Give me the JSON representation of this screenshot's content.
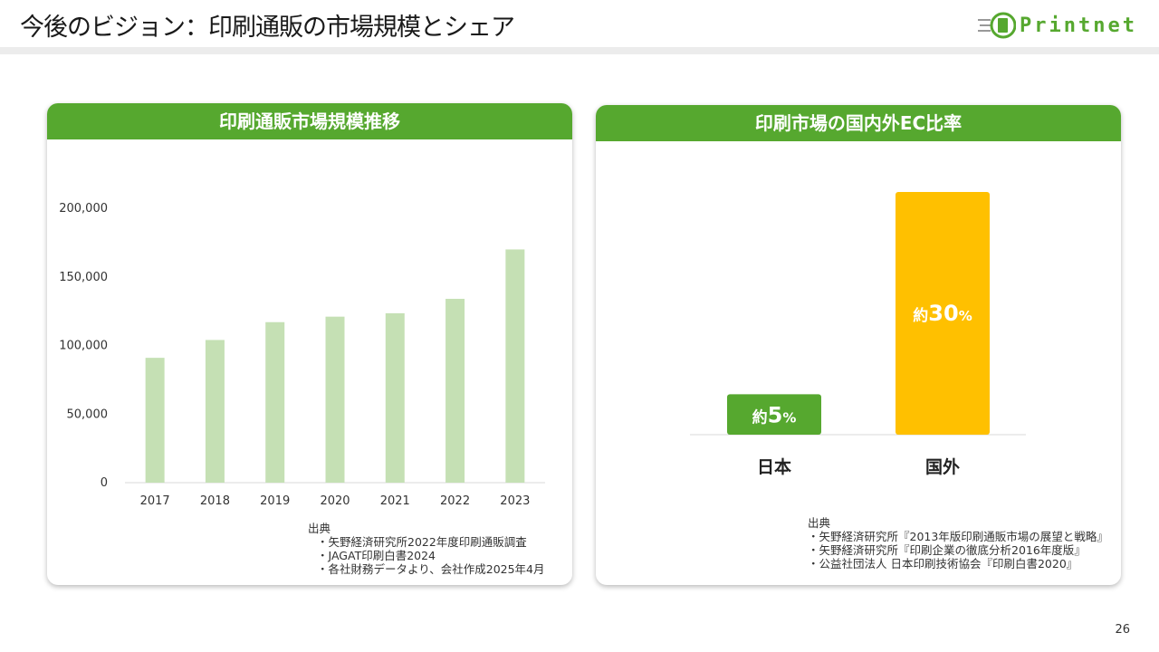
{
  "title": "今後のビジョン：印刷通販の市場規模とシェア",
  "logo": {
    "text": "Printnet",
    "color": "#56a82f"
  },
  "page_number": "26",
  "colors": {
    "accent": "#56a82f",
    "bar_light": "#c5e0b4",
    "bar_orange": "#ffc000"
  },
  "left_panel": {
    "heading": "印刷通販市場規模推移",
    "source_title": "出典",
    "sources": [
      "・矢野経済研究所2022年度印刷通販調査",
      "・JAGAT印刷白書2024",
      "・各社財務データより、会社作成2025年4月"
    ]
  },
  "right_panel": {
    "heading": "印刷市場の国内外EC比率",
    "source_title": "出典",
    "sources": [
      "・矢野経済研究所『2013年版印刷通販市場の展望と戦略』",
      "・矢野経済研究所『印刷企業の徹底分析2016年度版』",
      "・公益社団法人 日本印刷技術協会『印刷白書2020』"
    ]
  },
  "chart_data": [
    {
      "type": "bar",
      "title": "印刷通販市場規模推移",
      "categories": [
        "2017",
        "2018",
        "2019",
        "2020",
        "2021",
        "2022",
        "2023"
      ],
      "values": [
        91000,
        104000,
        117000,
        121000,
        123500,
        134000,
        170000
      ],
      "ylim": [
        0,
        200000
      ],
      "yticks": [
        "0",
        "50,000",
        "100,000",
        "150,000",
        "200,000"
      ],
      "ytick_values": [
        0,
        50000,
        100000,
        150000,
        200000
      ],
      "grid": false,
      "color": "#c5e0b4"
    },
    {
      "type": "bar",
      "title": "印刷市場の国内外EC比率",
      "categories": [
        "日本",
        "国外"
      ],
      "values": [
        5,
        30
      ],
      "data_labels": [
        {
          "prefix": "約",
          "number": "5",
          "suffix": "%"
        },
        {
          "prefix": "約",
          "number": "30",
          "suffix": "%"
        }
      ],
      "ylim": [
        0,
        30
      ],
      "colors": [
        "#56a82f",
        "#ffc000"
      ],
      "grid": false
    }
  ]
}
